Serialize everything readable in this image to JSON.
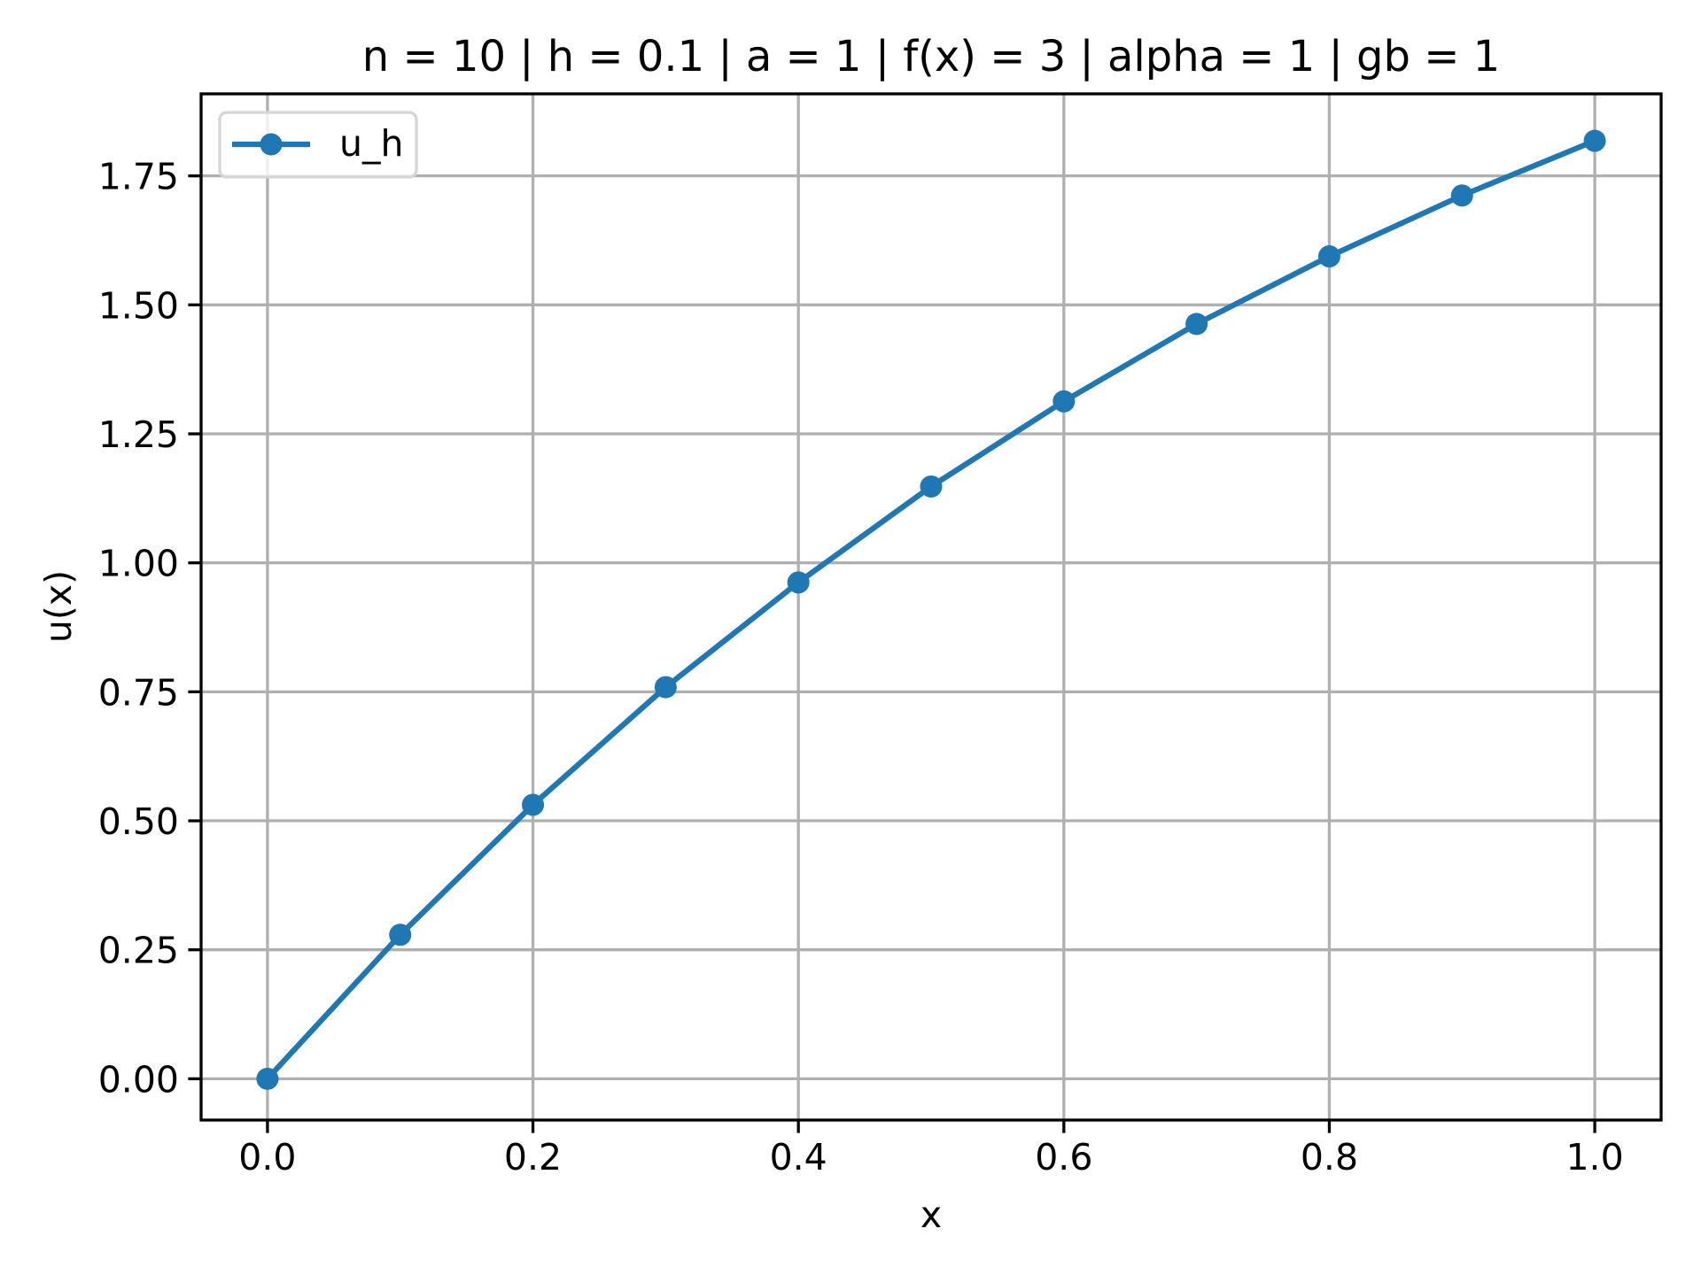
{
  "chart_data": {
    "type": "line",
    "title": "n = 10 | h = 0.1 | a = 1 | f(x) = 3 | alpha = 1 | gb = 1",
    "xlabel": "x",
    "ylabel": "u(x)",
    "xlim": [
      -0.05,
      1.05
    ],
    "ylim": [
      -0.08,
      1.909
    ],
    "xticks": [
      0.0,
      0.2,
      0.4,
      0.6,
      0.8,
      1.0
    ],
    "xtick_labels": [
      "0.0",
      "0.2",
      "0.4",
      "0.6",
      "0.8",
      "1.0"
    ],
    "yticks": [
      0.0,
      0.25,
      0.5,
      0.75,
      1.0,
      1.25,
      1.5,
      1.75
    ],
    "ytick_labels": [
      "0.00",
      "0.25",
      "0.50",
      "0.75",
      "1.00",
      "1.25",
      "1.50",
      "1.75"
    ],
    "grid": true,
    "legend_position": "top-left",
    "series": [
      {
        "name": "u_h",
        "color": "#1f77b4",
        "marker": "circle",
        "x": [
          0.0,
          0.1,
          0.2,
          0.3,
          0.4,
          0.5,
          0.6,
          0.7,
          0.8,
          0.9,
          1.0
        ],
        "y": [
          0.0,
          0.279,
          0.531,
          0.759,
          0.962,
          1.148,
          1.313,
          1.463,
          1.594,
          1.712,
          1.818
        ]
      }
    ]
  }
}
